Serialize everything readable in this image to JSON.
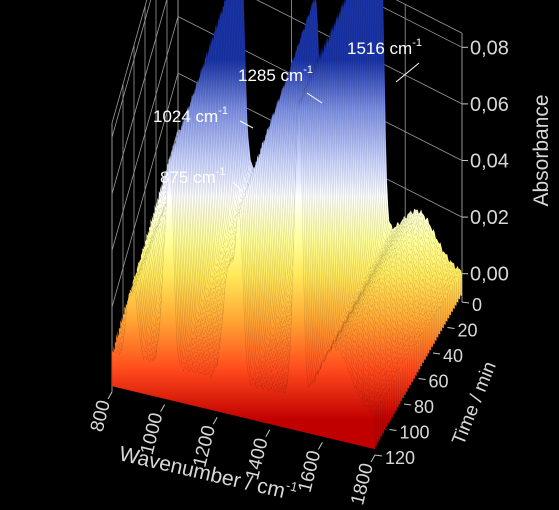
{
  "chart_data": {
    "type": "area",
    "subtype": "3d-waterfall",
    "x_axis": {
      "label": "Wavenumber / cm",
      "label_superscript": "-1",
      "range": [
        800,
        1800
      ],
      "ticks": [
        "800",
        "1000",
        "1200",
        "1400",
        "1600",
        "1800"
      ]
    },
    "time_axis": {
      "label": "Time / min",
      "range": [
        0,
        120
      ],
      "ticks": [
        "0",
        "20",
        "40",
        "60",
        "80",
        "100",
        "120"
      ]
    },
    "z_axis": {
      "label": "Absorbance",
      "range": [
        -0.01,
        0.085
      ],
      "ticks": [
        "0,00",
        "0,02",
        "0,04",
        "0,06",
        "0,08"
      ]
    },
    "grid": true,
    "colormap": [
      "#c00000",
      "#ff5a1f",
      "#ffc83a",
      "#ffff8a",
      "#ffffff",
      "#c8d4ff",
      "#7f93e8",
      "#1f3fb4"
    ],
    "annotations": [
      {
        "text": "875 cm",
        "sup": "-1",
        "wavenumber": 875
      },
      {
        "text": "1024 cm",
        "sup": "-1",
        "wavenumber": 1024
      },
      {
        "text": "1285 cm",
        "sup": "-1",
        "wavenumber": 1285
      },
      {
        "text": "1516 cm",
        "sup": "-1",
        "wavenumber": 1516
      }
    ],
    "peaks": [
      {
        "center": 860,
        "width": 10,
        "amp_t0": 0.0,
        "amp_t120": 0.015
      },
      {
        "center": 885,
        "width": 14,
        "amp_t0": 0.009,
        "amp_t120": 0.022
      },
      {
        "center": 1005,
        "width": 16,
        "amp_t0": 0.018,
        "amp_t120": 0.04
      },
      {
        "center": 1024,
        "width": 12,
        "amp_t0": 0.064,
        "amp_t120": 0.05
      },
      {
        "center": 1245,
        "width": 22,
        "amp_t0": 0.024,
        "amp_t120": 0.04
      },
      {
        "center": 1285,
        "width": 14,
        "amp_t0": 0.067,
        "amp_t120": 0.052
      },
      {
        "center": 1500,
        "width": 14,
        "amp_t0": 0.05,
        "amp_t120": 0.06
      },
      {
        "center": 1516,
        "width": 11,
        "amp_t0": 0.082,
        "amp_t120": 0.066
      },
      {
        "center": 1650,
        "width": 55,
        "amp_t0": 0.014,
        "amp_t120": 0.02
      }
    ]
  }
}
